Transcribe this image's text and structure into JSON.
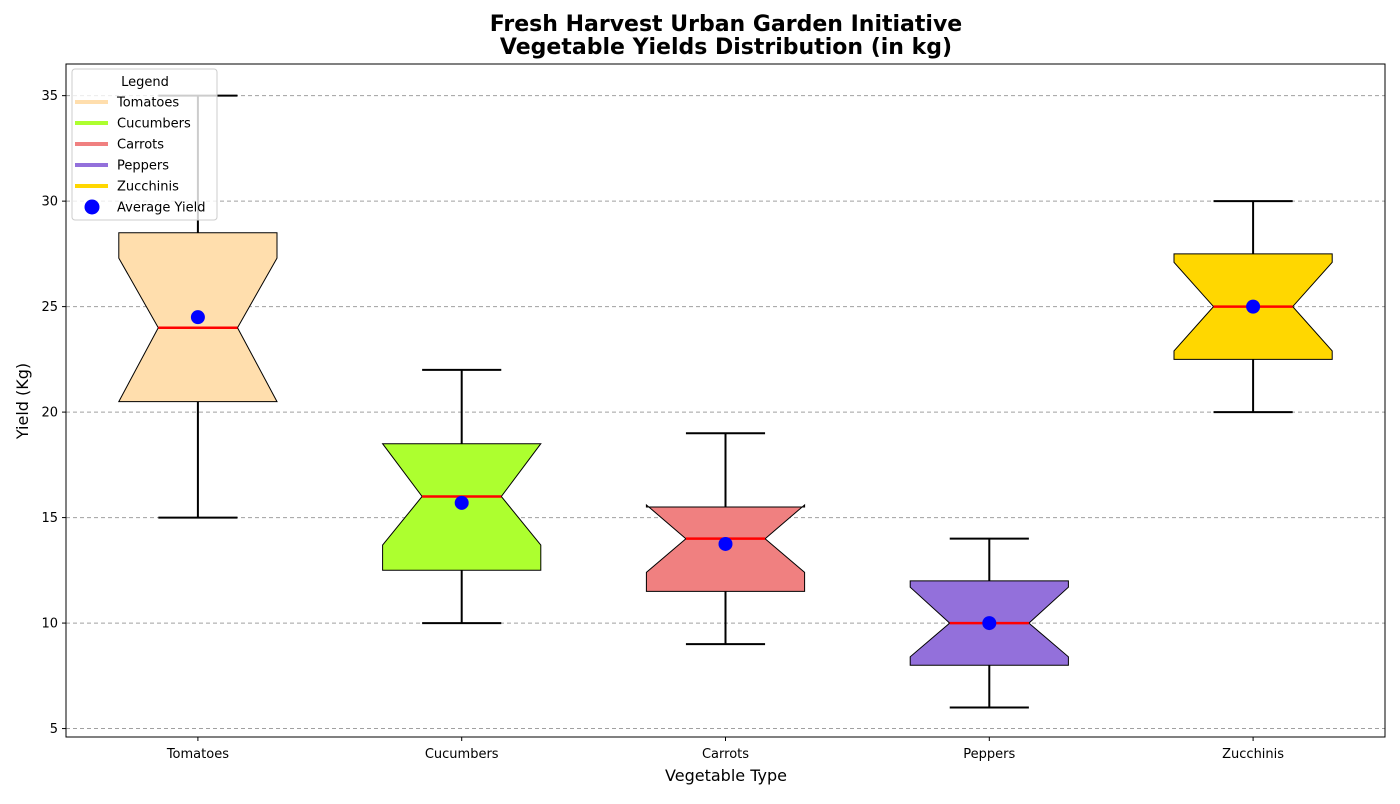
{
  "chart_data": {
    "type": "box",
    "title_lines": [
      "Fresh Harvest Urban Garden Initiative",
      "Vegetable Yields Distribution (in kg)"
    ],
    "xlabel": "Vegetable Type",
    "ylabel": "Yield (Kg)",
    "ylim": [
      4.6,
      36.5
    ],
    "yticks": [
      5,
      10,
      15,
      20,
      25,
      30,
      35
    ],
    "grid": "y-dashed",
    "notched": true,
    "categories": [
      "Tomatoes",
      "Cucumbers",
      "Carrots",
      "Peppers",
      "Zucchinis"
    ],
    "boxes": [
      {
        "name": "Tomatoes",
        "whisker_low": 15,
        "q1": 20.5,
        "median": 24,
        "q3": 28.5,
        "whisker_high": 35,
        "mean": 24.5,
        "notch_low": 20.5,
        "notch_high": 27.3,
        "color": "#FFDEAD"
      },
      {
        "name": "Cucumbers",
        "whisker_low": 10,
        "q1": 12.5,
        "median": 16,
        "q3": 18.5,
        "whisker_high": 22,
        "mean": 15.7,
        "notch_low": 13.7,
        "notch_high": 18.5,
        "color": "#ADFF2F"
      },
      {
        "name": "Carrots",
        "whisker_low": 9,
        "q1": 11.5,
        "median": 14,
        "q3": 15.5,
        "whisker_high": 19,
        "mean": 13.75,
        "notch_low": 12.4,
        "notch_high": 15.6,
        "color": "#F08080"
      },
      {
        "name": "Peppers",
        "whisker_low": 6,
        "q1": 8,
        "median": 10,
        "q3": 12,
        "whisker_high": 14,
        "mean": 10,
        "notch_low": 8.4,
        "notch_high": 11.7,
        "color": "#9370DB"
      },
      {
        "name": "Zucchinis",
        "whisker_low": 20,
        "q1": 22.5,
        "median": 25,
        "q3": 27.5,
        "whisker_high": 30,
        "mean": 25,
        "notch_low": 22.9,
        "notch_high": 27.1,
        "color": "#FFD700"
      }
    ],
    "median_color": "#FF0000",
    "mean_color": "#0000FF",
    "legend": {
      "title": "Legend",
      "placement": "top-left",
      "entries": [
        {
          "label": "Tomatoes",
          "color": "#FFDEAD",
          "marker": "line"
        },
        {
          "label": "Cucumbers",
          "color": "#ADFF2F",
          "marker": "line"
        },
        {
          "label": "Carrots",
          "color": "#F08080",
          "marker": "line"
        },
        {
          "label": "Peppers",
          "color": "#9370DB",
          "marker": "line"
        },
        {
          "label": "Zucchinis",
          "color": "#FFD700",
          "marker": "line"
        },
        {
          "label": "Average Yield",
          "color": "#0000FF",
          "marker": "dot"
        }
      ]
    }
  }
}
